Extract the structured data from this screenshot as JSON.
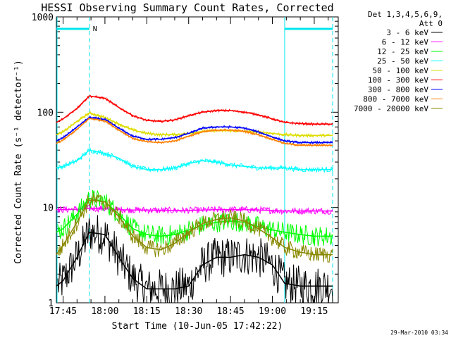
{
  "chart_data": {
    "type": "line",
    "title": "HESSI Observing Summary Count Rates, Corrected",
    "xlabel": "Start Time (10-Jun-05 17:42:22)",
    "ylabel": "Corrected Count Rate (s⁻¹ detector⁻¹)",
    "ylim": [
      1,
      1000
    ],
    "yscale": "log",
    "xlim_minutes": [
      -2.4,
      98.6
    ],
    "x_ticks": [
      "17:45",
      "18:00",
      "18:15",
      "18:30",
      "18:45",
      "19:00",
      "19:15"
    ],
    "x_tick_minutes": [
      0,
      15,
      30,
      45,
      60,
      75,
      90
    ],
    "y_ticks": [
      "1",
      "10",
      "100",
      "1000"
    ],
    "y_tick_values": [
      1,
      10,
      100,
      1000
    ],
    "detector_note": [
      "Det 1,3,4,5,6,9,",
      "Att 0"
    ],
    "night_marker_label": "N",
    "night_intervals_minutes": [
      [
        -2.4,
        9.4
      ],
      [
        79.4,
        96.6
      ]
    ],
    "timestamp": "29-Mar-2010 03:34",
    "x_minutes": [
      -2.4,
      0,
      5,
      9.4,
      15,
      20,
      25,
      30,
      35,
      40,
      45,
      50,
      55,
      60,
      65,
      70,
      75,
      79.4,
      85,
      90,
      96.6
    ],
    "series": [
      {
        "name": "3 - 6 keV",
        "color": "#000000",
        "values": [
          1.5,
          1.7,
          3.0,
          5.5,
          5.2,
          3.0,
          1.8,
          1.4,
          1.4,
          1.4,
          1.5,
          2.5,
          3.0,
          3.0,
          3.2,
          3.0,
          2.5,
          1.6,
          1.5,
          1.5,
          1.5
        ]
      },
      {
        "name": "6 - 12 keV",
        "color": "#ff00ff",
        "values": [
          9.5,
          9.5,
          9.6,
          9.8,
          9.7,
          9.5,
          9.4,
          9.4,
          9.3,
          9.3,
          9.3,
          9.4,
          9.5,
          9.5,
          9.5,
          9.4,
          9.3,
          9.2,
          9.2,
          9.2,
          9.2
        ]
      },
      {
        "name": "12 - 25 keV",
        "color": "#00ff00",
        "values": [
          5.5,
          6.0,
          8.5,
          12.5,
          11.5,
          8.5,
          6.0,
          5.2,
          5.0,
          5.2,
          5.8,
          6.5,
          7.0,
          7.2,
          7.0,
          6.3,
          5.8,
          5.5,
          5.2,
          5.0,
          5.0
        ]
      },
      {
        "name": "25 - 50 keV",
        "color": "#00ffff",
        "values": [
          26,
          27,
          31,
          40,
          37,
          33,
          27,
          25,
          25,
          26,
          29,
          31,
          30,
          28,
          27,
          26,
          26,
          26,
          25,
          25,
          25
        ]
      },
      {
        "name": "50 - 100 keV",
        "color": "#dddd00",
        "values": [
          58,
          62,
          80,
          98,
          88,
          75,
          65,
          60,
          58,
          58,
          60,
          63,
          64,
          64,
          63,
          62,
          60,
          58,
          57,
          57,
          57
        ]
      },
      {
        "name": "100 - 300 keV",
        "color": "#ff0000",
        "values": [
          78,
          85,
          110,
          148,
          140,
          112,
          92,
          82,
          80,
          83,
          92,
          100,
          104,
          104,
          100,
          94,
          85,
          78,
          76,
          75,
          75
        ]
      },
      {
        "name": "300 - 800 keV",
        "color": "#0000ff",
        "values": [
          50,
          54,
          70,
          88,
          84,
          68,
          56,
          52,
          52,
          54,
          60,
          68,
          70,
          70,
          68,
          62,
          55,
          50,
          48,
          48,
          48
        ]
      },
      {
        "name": "800 - 7000 keV",
        "color": "#ff8000",
        "values": [
          47,
          51,
          66,
          86,
          81,
          65,
          53,
          49,
          48,
          50,
          56,
          62,
          65,
          65,
          63,
          58,
          52,
          47,
          45,
          45,
          45
        ]
      },
      {
        "name": "7000 - 20000 keV",
        "color": "#888800",
        "values": [
          3.2,
          4.0,
          7.0,
          12.0,
          11.5,
          8.0,
          5.0,
          3.8,
          3.6,
          4.2,
          5.5,
          6.8,
          7.5,
          7.8,
          7.2,
          6.0,
          4.8,
          3.8,
          3.4,
          3.2,
          3.2
        ]
      }
    ]
  }
}
